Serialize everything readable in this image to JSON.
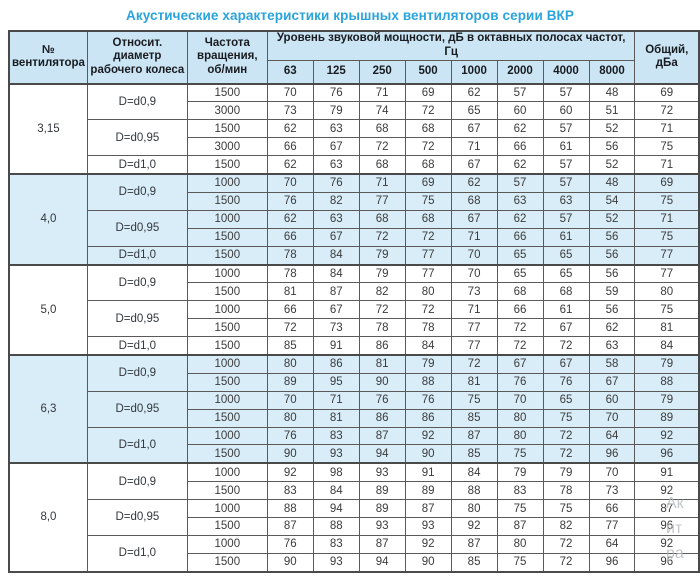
{
  "title": "Акустические характеристики крышных вентиляторов серии ВКР",
  "colors": {
    "title_blue": "#29a4dd",
    "header_bg": "#cbe5f4",
    "shaded_row_bg": "#d9edf8",
    "border": "#4a4a4a"
  },
  "table": {
    "headers": {
      "fan_no": "№ вентилятора",
      "diameter": "Относит. диаметр рабочего колеса",
      "speed": "Частота вращения, об/мин",
      "spl_group": "Уровень звуковой мощности, дБ в октавных полосах частот, Гц",
      "freq_bands": [
        "63",
        "125",
        "250",
        "500",
        "1000",
        "2000",
        "4000",
        "8000"
      ],
      "total": "Общий, дБа"
    },
    "groups": [
      {
        "fan": "3,15",
        "shaded": false,
        "rows": [
          {
            "diameter": "D=d0,9",
            "dspan": 2,
            "rpm": "1500",
            "levels": [
              70,
              76,
              71,
              69,
              62,
              57,
              57,
              48
            ],
            "total": "69"
          },
          {
            "rpm": "3000",
            "levels": [
              73,
              79,
              74,
              72,
              65,
              60,
              60,
              51
            ],
            "total": "72"
          },
          {
            "diameter": "D=d0,95",
            "dspan": 2,
            "rpm": "1500",
            "levels": [
              62,
              63,
              68,
              68,
              67,
              62,
              57,
              52
            ],
            "total": "71"
          },
          {
            "rpm": "3000",
            "levels": [
              66,
              67,
              72,
              72,
              71,
              66,
              61,
              56
            ],
            "total": "75"
          },
          {
            "diameter": "D=d1,0",
            "dspan": 1,
            "rpm": "1500",
            "levels": [
              62,
              63,
              68,
              68,
              67,
              62,
              57,
              52
            ],
            "total": "71"
          }
        ]
      },
      {
        "fan": "4,0",
        "shaded": true,
        "rows": [
          {
            "diameter": "D=d0,9",
            "dspan": 2,
            "rpm": "1000",
            "levels": [
              70,
              76,
              71,
              69,
              62,
              57,
              57,
              48
            ],
            "total": "69"
          },
          {
            "rpm": "1500",
            "levels": [
              76,
              82,
              77,
              75,
              68,
              63,
              63,
              54
            ],
            "total": "75"
          },
          {
            "diameter": "D=d0,95",
            "dspan": 2,
            "rpm": "1000",
            "levels": [
              62,
              63,
              68,
              68,
              67,
              62,
              57,
              52
            ],
            "total": "71"
          },
          {
            "rpm": "1500",
            "levels": [
              66,
              67,
              72,
              72,
              71,
              66,
              61,
              56
            ],
            "total": "75"
          },
          {
            "diameter": "D=d1,0",
            "dspan": 1,
            "rpm": "1500",
            "levels": [
              78,
              84,
              79,
              77,
              70,
              65,
              65,
              56
            ],
            "total": "77"
          }
        ]
      },
      {
        "fan": "5,0",
        "shaded": false,
        "rows": [
          {
            "diameter": "D=d0,9",
            "dspan": 2,
            "rpm": "1000",
            "levels": [
              78,
              84,
              79,
              77,
              70,
              65,
              65,
              56
            ],
            "total": "77"
          },
          {
            "rpm": "1500",
            "levels": [
              81,
              87,
              82,
              80,
              73,
              68,
              68,
              59
            ],
            "total": "80"
          },
          {
            "diameter": "D=d0,95",
            "dspan": 2,
            "rpm": "1000",
            "levels": [
              66,
              67,
              72,
              72,
              71,
              66,
              61,
              56
            ],
            "total": "75"
          },
          {
            "rpm": "1500",
            "levels": [
              72,
              73,
              78,
              78,
              77,
              72,
              67,
              62
            ],
            "total": "81"
          },
          {
            "diameter": "D=d1,0",
            "dspan": 1,
            "rpm": "1500",
            "levels": [
              85,
              91,
              86,
              84,
              77,
              72,
              72,
              63
            ],
            "total": "84"
          }
        ]
      },
      {
        "fan": "6,3",
        "shaded": true,
        "rows": [
          {
            "diameter": "D=d0,9",
            "dspan": 2,
            "rpm": "1000",
            "levels": [
              80,
              86,
              81,
              79,
              72,
              67,
              67,
              58
            ],
            "total": "79"
          },
          {
            "rpm": "1500",
            "levels": [
              89,
              95,
              90,
              88,
              81,
              76,
              76,
              67
            ],
            "total": "88"
          },
          {
            "diameter": "D=d0,95",
            "dspan": 2,
            "rpm": "1000",
            "levels": [
              70,
              71,
              76,
              76,
              75,
              70,
              65,
              60
            ],
            "total": "79"
          },
          {
            "rpm": "1500",
            "levels": [
              80,
              81,
              86,
              86,
              85,
              80,
              75,
              70
            ],
            "total": "89"
          },
          {
            "diameter": "D=d1,0",
            "dspan": 2,
            "rpm": "1000",
            "levels": [
              76,
              83,
              87,
              92,
              87,
              80,
              72,
              64
            ],
            "total": "92"
          },
          {
            "rpm": "1500",
            "levels": [
              90,
              93,
              94,
              90,
              85,
              75,
              72,
              96
            ],
            "total": "96"
          }
        ]
      },
      {
        "fan": "8,0",
        "shaded": false,
        "rows": [
          {
            "diameter": "D=d0,9",
            "dspan": 2,
            "rpm": "1000",
            "levels": [
              92,
              98,
              93,
              91,
              84,
              79,
              79,
              70
            ],
            "total": "91"
          },
          {
            "rpm": "1500",
            "levels": [
              83,
              84,
              89,
              89,
              88,
              83,
              78,
              73
            ],
            "total": "92"
          },
          {
            "diameter": "D=d0,95",
            "dspan": 2,
            "rpm": "1000",
            "levels": [
              88,
              94,
              89,
              87,
              80,
              75,
              75,
              66
            ],
            "total": "87"
          },
          {
            "rpm": "1500",
            "levels": [
              87,
              88,
              93,
              93,
              92,
              87,
              82,
              77
            ],
            "total": "96"
          },
          {
            "diameter": "D=d1,0",
            "dspan": 2,
            "rpm": "1000",
            "levels": [
              76,
              83,
              87,
              92,
              87,
              80,
              72,
              64
            ],
            "total": "92"
          },
          {
            "rpm": "1500",
            "levels": [
              90,
              93,
              94,
              90,
              85,
              75,
              72,
              96
            ],
            "total": "96"
          }
        ]
      }
    ]
  },
  "watermark": {
    "lines": [
      "Ак",
      "ит",
      "ра"
    ]
  }
}
